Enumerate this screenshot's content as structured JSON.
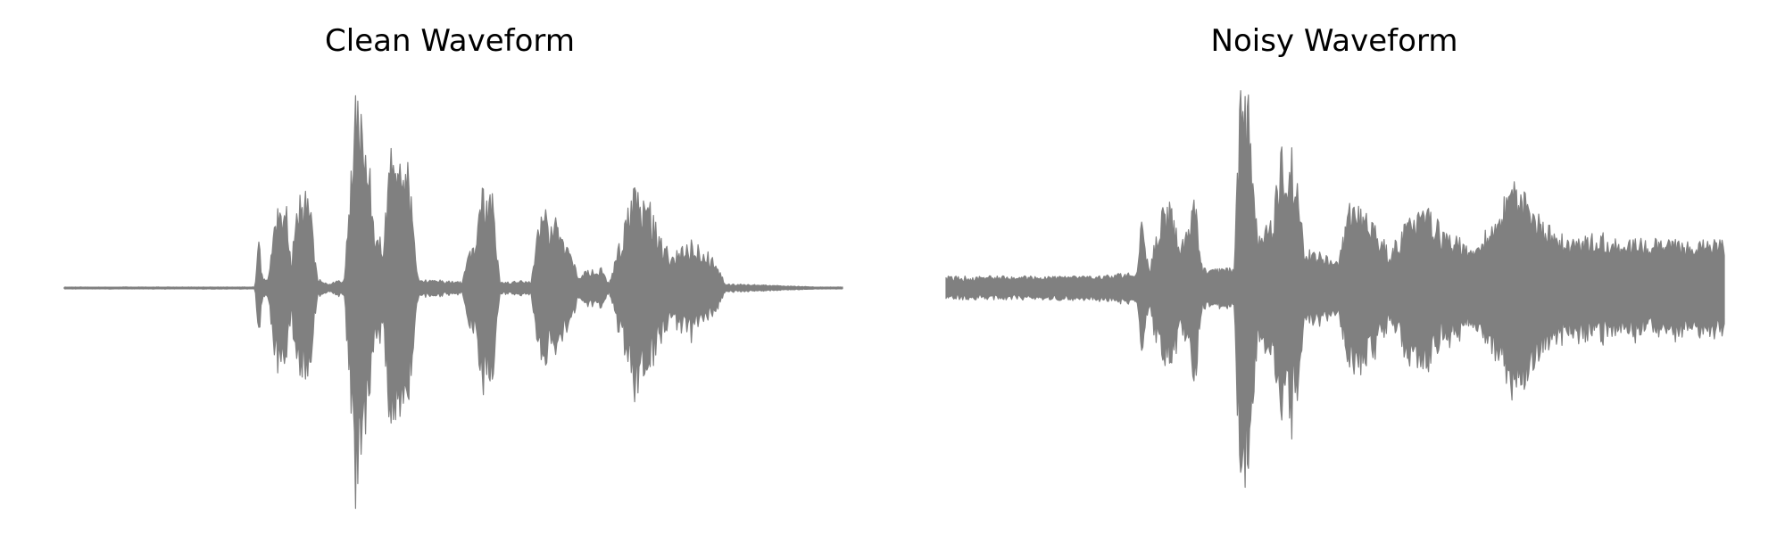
{
  "chart_data": [
    {
      "type": "line",
      "title": "Clean Waveform",
      "xlabel": "",
      "ylabel": "",
      "axes": "off",
      "grid": false,
      "color": "#808080",
      "ylim": [
        -1,
        1
      ],
      "xlim": [
        0,
        1
      ],
      "baseline_noise": 0.005,
      "envelope": [
        [
          0.0,
          0.0
        ],
        [
          0.245,
          0.0
        ],
        [
          0.25,
          0.25
        ],
        [
          0.255,
          0.05
        ],
        [
          0.262,
          0.04
        ],
        [
          0.27,
          0.4
        ],
        [
          0.285,
          0.45
        ],
        [
          0.292,
          0.1
        ],
        [
          0.298,
          0.45
        ],
        [
          0.315,
          0.5
        ],
        [
          0.325,
          0.05
        ],
        [
          0.34,
          0.02
        ],
        [
          0.36,
          0.05
        ],
        [
          0.375,
          1.0
        ],
        [
          0.388,
          0.95
        ],
        [
          0.398,
          0.3
        ],
        [
          0.41,
          0.25
        ],
        [
          0.42,
          0.7
        ],
        [
          0.44,
          0.75
        ],
        [
          0.45,
          0.25
        ],
        [
          0.455,
          0.05
        ],
        [
          0.512,
          0.03
        ],
        [
          0.518,
          0.22
        ],
        [
          0.53,
          0.22
        ],
        [
          0.535,
          0.5
        ],
        [
          0.55,
          0.48
        ],
        [
          0.56,
          0.03
        ],
        [
          0.6,
          0.04
        ],
        [
          0.612,
          0.4
        ],
        [
          0.625,
          0.38
        ],
        [
          0.64,
          0.3
        ],
        [
          0.66,
          0.08
        ],
        [
          0.69,
          0.1
        ],
        [
          0.7,
          0.02
        ],
        [
          0.73,
          0.5
        ],
        [
          0.75,
          0.45
        ],
        [
          0.76,
          0.35
        ],
        [
          0.78,
          0.15
        ],
        [
          0.8,
          0.25
        ],
        [
          0.83,
          0.18
        ],
        [
          0.85,
          0.02
        ],
        [
          0.87,
          0.02
        ],
        [
          1.0,
          0.0
        ]
      ]
    },
    {
      "type": "line",
      "title": "Noisy Waveform",
      "xlabel": "",
      "ylabel": "",
      "axes": "off",
      "grid": false,
      "color": "#808080",
      "ylim": [
        -1,
        1
      ],
      "xlim": [
        0,
        1
      ],
      "baseline_noise": 0.06,
      "noise_ramp": [
        0.03,
        0.22
      ],
      "envelope": [
        [
          0.0,
          0.02
        ],
        [
          0.245,
          0.04
        ],
        [
          0.25,
          0.4
        ],
        [
          0.262,
          0.1
        ],
        [
          0.275,
          0.4
        ],
        [
          0.29,
          0.45
        ],
        [
          0.3,
          0.2
        ],
        [
          0.32,
          0.48
        ],
        [
          0.33,
          0.1
        ],
        [
          0.37,
          0.1
        ],
        [
          0.378,
          1.0
        ],
        [
          0.39,
          0.95
        ],
        [
          0.4,
          0.3
        ],
        [
          0.42,
          0.35
        ],
        [
          0.43,
          0.75
        ],
        [
          0.45,
          0.7
        ],
        [
          0.46,
          0.2
        ],
        [
          0.505,
          0.15
        ],
        [
          0.52,
          0.5
        ],
        [
          0.54,
          0.4
        ],
        [
          0.57,
          0.2
        ],
        [
          0.61,
          0.45
        ],
        [
          0.64,
          0.3
        ],
        [
          0.68,
          0.2
        ],
        [
          0.73,
          0.55
        ],
        [
          0.76,
          0.4
        ],
        [
          0.8,
          0.25
        ],
        [
          0.85,
          0.28
        ],
        [
          0.9,
          0.25
        ],
        [
          0.95,
          0.24
        ],
        [
          1.0,
          0.24
        ]
      ]
    }
  ]
}
